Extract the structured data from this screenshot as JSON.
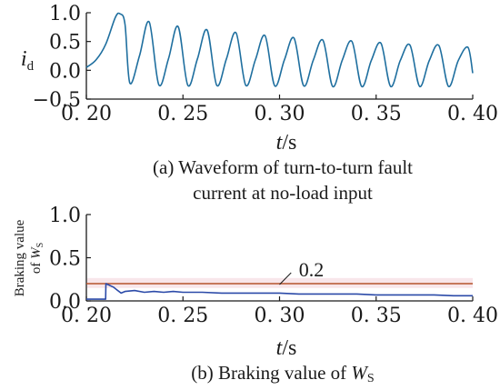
{
  "colors": {
    "series": "#1f6f9f",
    "series_b": "#2b4aa8",
    "threshold": "#b5532c",
    "threshold_band": "#f8e6ea",
    "axis": "#1a1a1a"
  },
  "chart_data": [
    {
      "type": "line",
      "panel": "a",
      "caption_line1": "(a) Waveform of turn-to-turn fault",
      "caption_line2": "current at no-load input",
      "ylabel_main": "i",
      "ylabel_sub": "d",
      "xlabel_main": "t",
      "xlabel_unit": "/s",
      "xlim": [
        0.2,
        0.4
      ],
      "ylim": [
        -0.5,
        1.0
      ],
      "xticks": [
        0.2,
        0.25,
        0.3,
        0.35,
        0.4
      ],
      "xtick_labels": [
        "0. 20",
        "0. 25",
        "0. 30",
        "0. 35",
        "0. 40"
      ],
      "yticks": [
        -0.5,
        0.0,
        0.5,
        1.0
      ],
      "ytick_labels": [
        "−0.5",
        "0.0",
        "0.5",
        "1.0"
      ],
      "series": [
        {
          "x": [
            0.2,
            0.205,
            0.21,
            0.215,
            0.2175,
            0.22,
            0.2225,
            0.2275,
            0.2325,
            0.2375,
            0.2425,
            0.2475,
            0.2525,
            0.2575,
            0.2625,
            0.2675,
            0.2725,
            0.2775,
            0.2825,
            0.2875,
            0.2925,
            0.2975,
            0.3025,
            0.3075,
            0.3125,
            0.3175,
            0.3225,
            0.3275,
            0.3325,
            0.3375,
            0.3425,
            0.3475,
            0.3525,
            0.3575,
            0.3625,
            0.3675,
            0.3725,
            0.3775,
            0.3825,
            0.3875,
            0.3925,
            0.3975,
            0.4
          ],
          "y": [
            0.05,
            0.18,
            0.45,
            0.92,
            0.98,
            0.8,
            -0.22,
            0.25,
            0.84,
            -0.25,
            0.2,
            0.76,
            -0.26,
            0.2,
            0.7,
            -0.26,
            0.2,
            0.65,
            -0.26,
            0.18,
            0.6,
            -0.27,
            0.18,
            0.56,
            -0.27,
            0.18,
            0.52,
            -0.28,
            0.18,
            0.5,
            -0.28,
            0.17,
            0.47,
            -0.28,
            0.17,
            0.44,
            -0.28,
            0.17,
            0.43,
            -0.28,
            0.17,
            0.4,
            -0.05
          ]
        }
      ]
    },
    {
      "type": "line",
      "panel": "b",
      "caption_prefix": "(b) Braking value of ",
      "caption_var": "W",
      "caption_sub": "S",
      "ylabel_line1": "Braking value",
      "ylabel_line2_prefix": "of ",
      "ylabel_var": "W",
      "ylabel_sub": "S",
      "xlabel_main": "t",
      "xlabel_unit": "/s",
      "xlim": [
        0.2,
        0.4
      ],
      "ylim": [
        0.0,
        1.0
      ],
      "xticks": [
        0.2,
        0.25,
        0.3,
        0.35,
        0.4
      ],
      "xtick_labels": [
        "0. 20",
        "0. 25",
        "0. 30",
        "0. 35",
        "0. 40"
      ],
      "yticks": [
        0.0,
        0.5,
        1.0
      ],
      "ytick_labels": [
        "0.0",
        "0.5",
        "1.0"
      ],
      "threshold": {
        "value": 0.2,
        "label": "0.2"
      },
      "series": [
        {
          "x": [
            0.2,
            0.21,
            0.2101,
            0.214,
            0.218,
            0.22,
            0.225,
            0.23,
            0.235,
            0.24,
            0.245,
            0.25,
            0.26,
            0.27,
            0.28,
            0.29,
            0.3,
            0.31,
            0.32,
            0.33,
            0.34,
            0.35,
            0.36,
            0.37,
            0.38,
            0.39,
            0.4
          ],
          "y": [
            0.02,
            0.02,
            0.2,
            0.16,
            0.09,
            0.11,
            0.12,
            0.1,
            0.11,
            0.1,
            0.11,
            0.1,
            0.1,
            0.09,
            0.09,
            0.09,
            0.09,
            0.08,
            0.08,
            0.08,
            0.08,
            0.07,
            0.07,
            0.07,
            0.07,
            0.06,
            0.06
          ]
        }
      ]
    }
  ]
}
